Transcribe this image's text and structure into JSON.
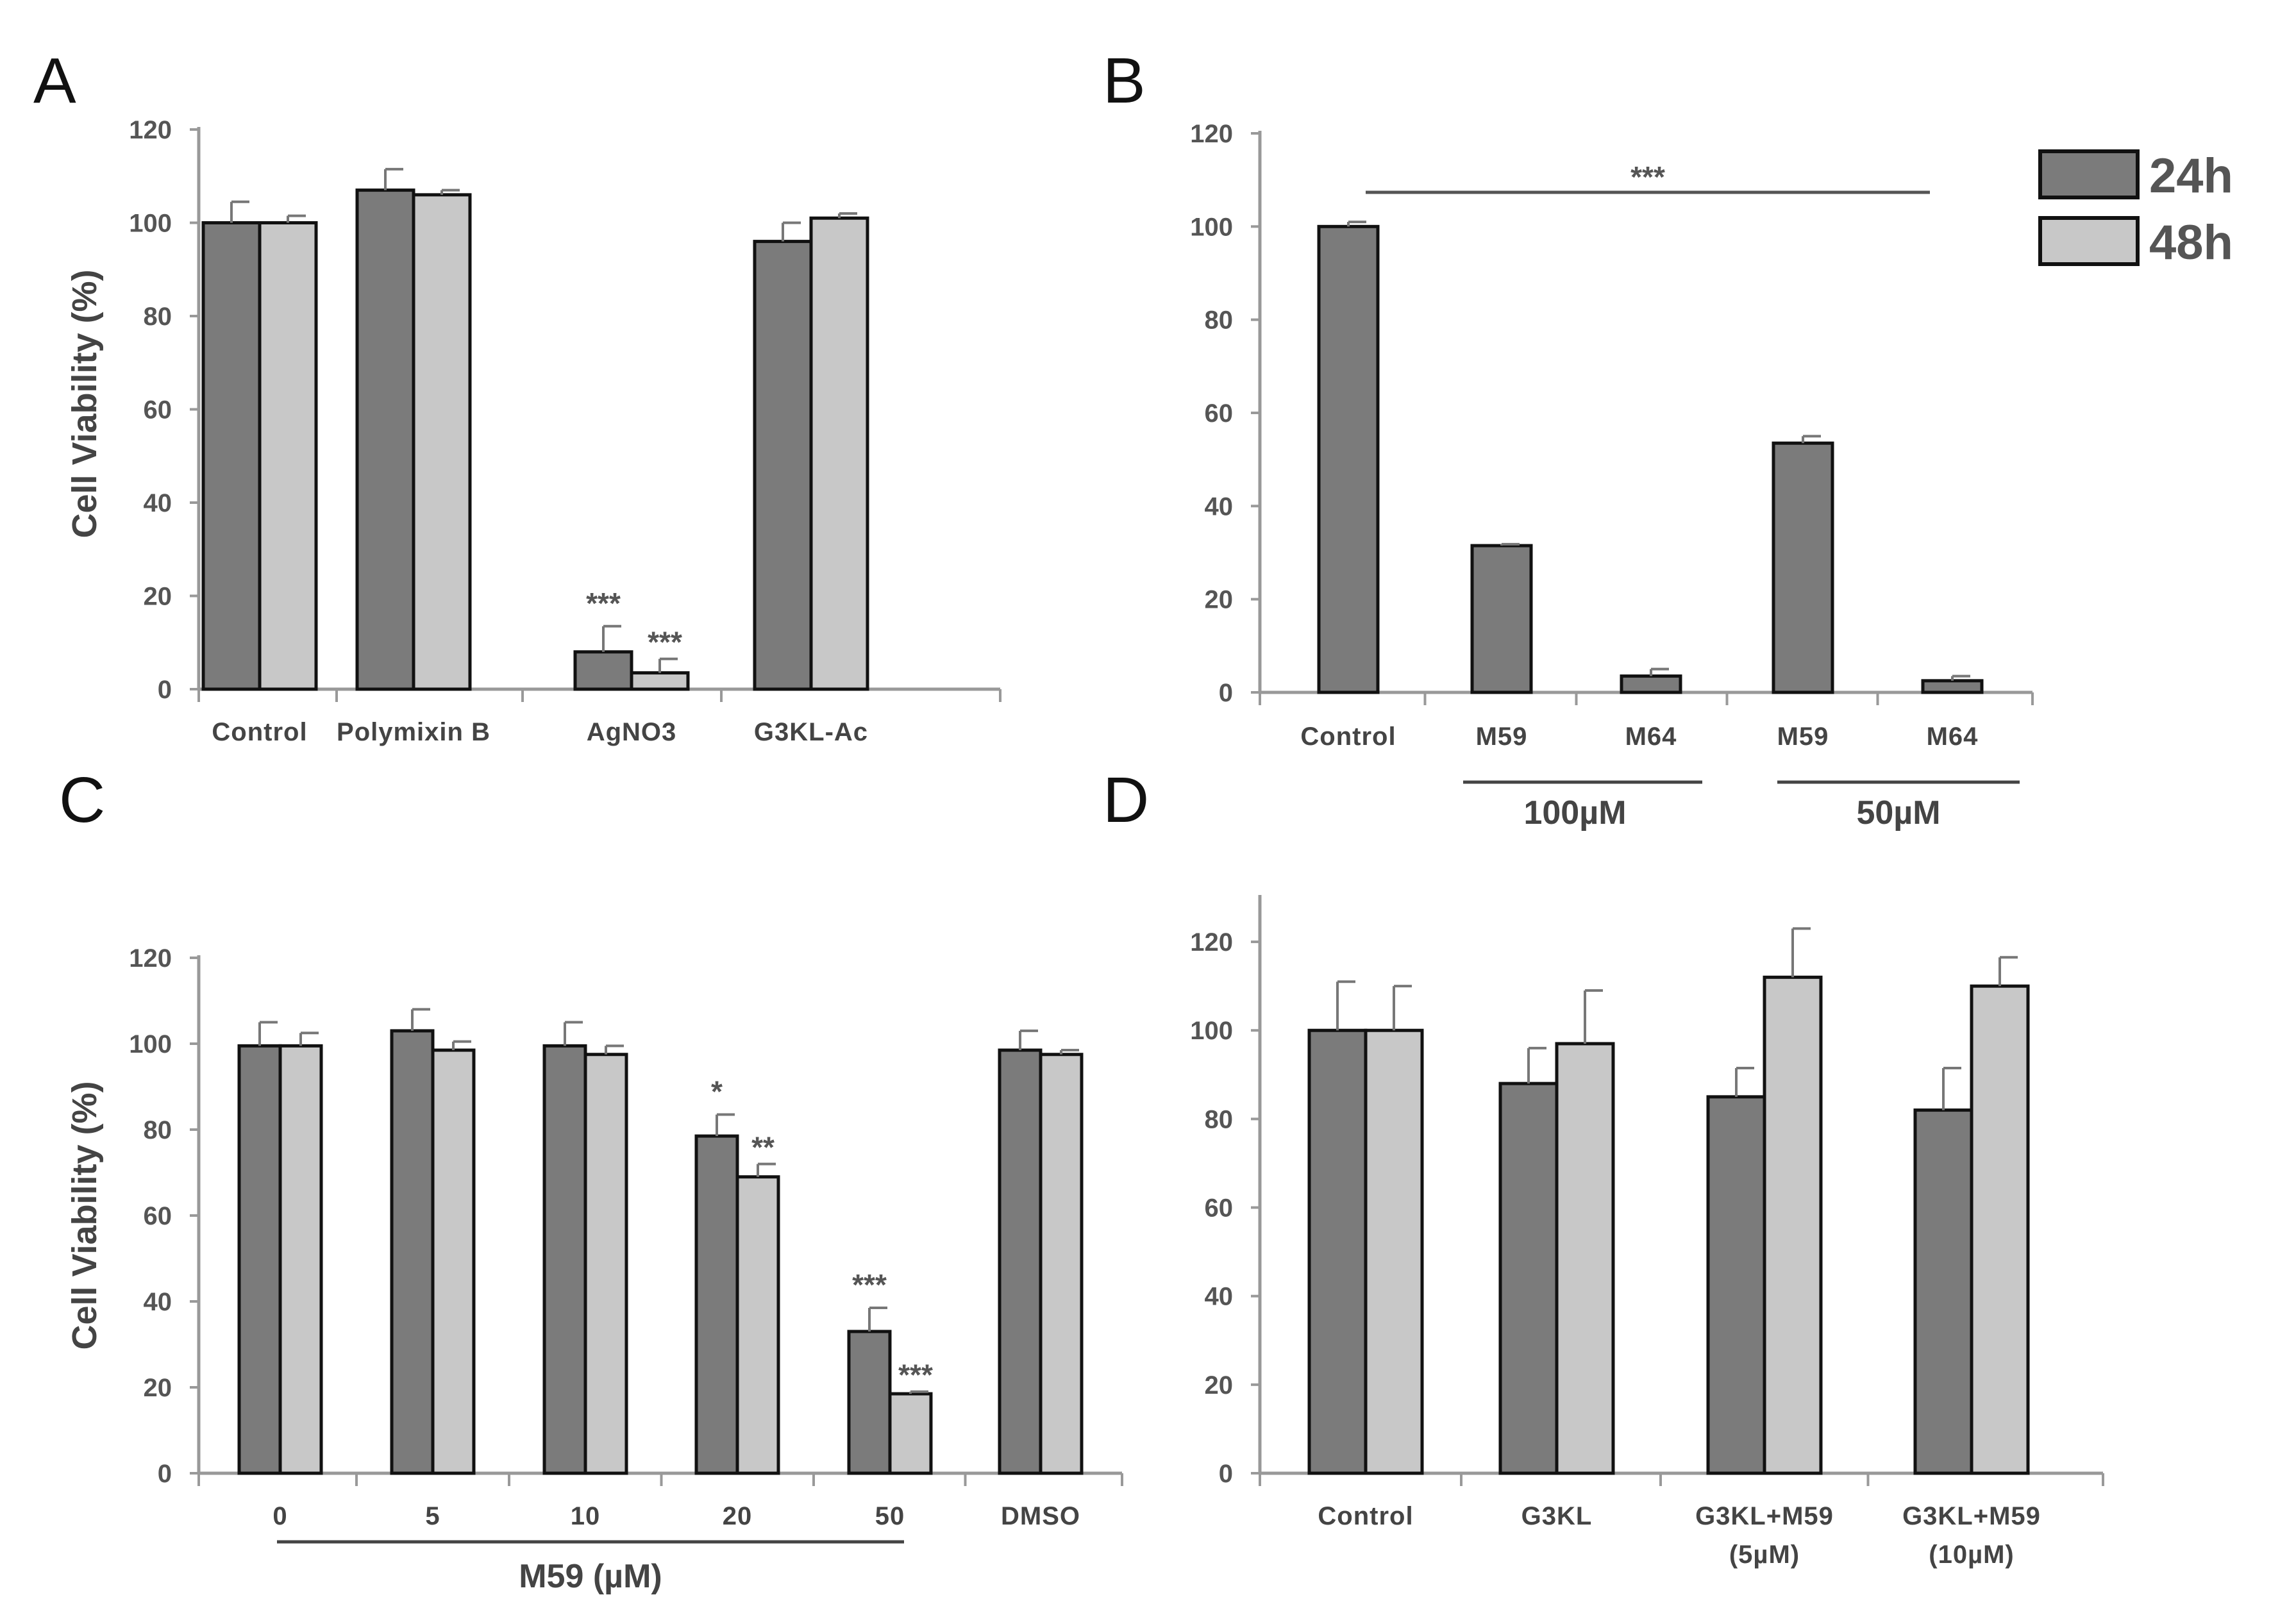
{
  "legend": {
    "items": [
      {
        "label": "24h",
        "color": "#7b7b7b"
      },
      {
        "label": "48h",
        "color": "#c8c8c8"
      }
    ]
  },
  "chart_data": [
    {
      "panel": "A",
      "type": "bar",
      "ylabel": "Cell Viability (%)",
      "ylim": [
        0,
        120
      ],
      "yticks": [
        0,
        20,
        40,
        60,
        80,
        100,
        120
      ],
      "categories": [
        "Control",
        "Polymixin B",
        "AgNO3",
        "G3KL-Ac"
      ],
      "series": [
        {
          "name": "24h",
          "values": [
            100,
            107,
            8,
            96
          ],
          "errors": [
            4.5,
            4.5,
            5.5,
            4
          ],
          "sig": [
            "",
            "",
            "***",
            ""
          ]
        },
        {
          "name": "48h",
          "values": [
            100,
            106,
            3.5,
            101
          ],
          "errors": [
            1.5,
            1,
            3,
            1
          ],
          "sig": [
            "",
            "",
            "***",
            ""
          ]
        }
      ]
    },
    {
      "panel": "B",
      "type": "bar",
      "ylabel": "",
      "ylim": [
        0,
        120
      ],
      "yticks": [
        0,
        20,
        40,
        60,
        80,
        100,
        120
      ],
      "categories": [
        "Control",
        "M59",
        "M64",
        "M59",
        "M64"
      ],
      "series": [
        {
          "name": "24h",
          "values": [
            100,
            31.5,
            3.5,
            53.5,
            2.5
          ],
          "errors": [
            1,
            0.3,
            1.5,
            1.5,
            1
          ]
        }
      ],
      "significance": "***",
      "groups": [
        {
          "label": "100µM",
          "categories": [
            "M59",
            "M64"
          ]
        },
        {
          "label": "50µM",
          "categories": [
            "M59",
            "M64"
          ]
        }
      ]
    },
    {
      "panel": "C",
      "type": "bar",
      "ylabel": "Cell Viability (%)",
      "ylim": [
        0,
        120
      ],
      "yticks": [
        0,
        20,
        40,
        60,
        80,
        100,
        120
      ],
      "categories": [
        "0",
        "5",
        "10",
        "20",
        "50",
        "DMSO"
      ],
      "series": [
        {
          "name": "24h",
          "values": [
            99.5,
            103,
            99.5,
            78.5,
            33,
            98.5
          ],
          "errors": [
            5.5,
            5,
            5.5,
            5,
            5.5,
            4.5
          ],
          "sig": [
            "",
            "",
            "",
            "*",
            "***",
            ""
          ]
        },
        {
          "name": "48h",
          "values": [
            99.5,
            98.5,
            97.5,
            69,
            18.5,
            97.5
          ],
          "errors": [
            3,
            2,
            2,
            3,
            0.5,
            1
          ],
          "sig": [
            "",
            "",
            "",
            "**",
            "***",
            ""
          ]
        }
      ],
      "group_label": "M59 (µM)"
    },
    {
      "panel": "D",
      "type": "bar",
      "ylabel": "",
      "ylim": [
        0,
        130
      ],
      "yticks": [
        0,
        20,
        40,
        60,
        80,
        100,
        120
      ],
      "categories": [
        "Control",
        "G3KL",
        "G3KL+M59\n(5µM)",
        "G3KL+M59\n(10µM)"
      ],
      "series": [
        {
          "name": "24h",
          "values": [
            100,
            88,
            85,
            82
          ],
          "errors": [
            11,
            8,
            6.5,
            9.5
          ]
        },
        {
          "name": "48h",
          "values": [
            100,
            97,
            112,
            110
          ],
          "errors": [
            10,
            12,
            11,
            6.5
          ]
        }
      ]
    }
  ]
}
